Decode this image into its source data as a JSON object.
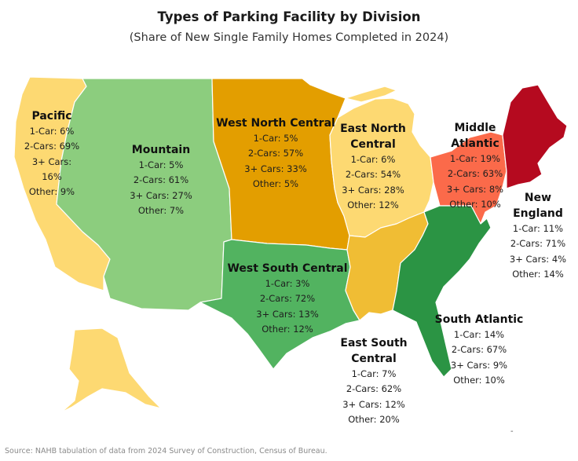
{
  "title": "Types of Parking Facility by Division",
  "subtitle": "(Share of New Single Family Homes Completed in 2024)",
  "source": "Source: NAHB tabulation of data from 2024 Survey of Construction, Census of Bureau.",
  "footer_mark": "-",
  "colors": {
    "pacific": "#fdd972",
    "mountain": "#8ccd7e",
    "west_north_central": "#e39e00",
    "east_north_central": "#fdd972",
    "middle_atlantic": "#fb6a4a",
    "new_england": "#b50a1f",
    "west_south_central": "#52b360",
    "east_south_central": "#f0bd34",
    "south_atlantic": "#2b9444"
  },
  "divisions": {
    "pacific": {
      "name": "Pacific",
      "car1": "1-Car: 6%",
      "car2": "2-Cars: 69%",
      "car3a": "3+ Cars:",
      "car3b": "16%",
      "other": "Other: 9%"
    },
    "mountain": {
      "name": "Mountain",
      "car1": "1-Car: 5%",
      "car2": "2-Cars: 61%",
      "car3": "3+ Cars: 27%",
      "other": "Other: 7%"
    },
    "west_north_central": {
      "name": "West North Central",
      "car1": "1-Car: 5%",
      "car2": "2-Cars: 57%",
      "car3": "3+ Cars: 33%",
      "other": "Other: 5%"
    },
    "east_north_central": {
      "name1": "East North",
      "name2": "Central",
      "car1": "1-Car: 6%",
      "car2": "2-Cars: 54%",
      "car3": "3+ Cars: 28%",
      "other": "Other: 12%"
    },
    "middle_atlantic": {
      "name1": "Middle",
      "name2": "Atlantic",
      "car1": "1-Car: 19%",
      "car2": "2-Cars: 63%",
      "car3": "3+ Cars: 8%",
      "other": "Other: 10%"
    },
    "new_england": {
      "name1": "New",
      "name2": "England",
      "car1": "1-Car: 11%",
      "car2": "2-Cars: 71%",
      "car3": "3+ Cars: 4%",
      "other": "Other: 14%"
    },
    "west_south_central": {
      "name": "West South Central",
      "car1": "1-Car: 3%",
      "car2": "2-Cars: 72%",
      "car3": "3+ Cars: 13%",
      "other": "Other: 12%"
    },
    "east_south_central": {
      "name1": "East South",
      "name2": "Central",
      "car1": "1-Car: 7%",
      "car2": "2-Cars: 62%",
      "car3": "3+ Cars: 12%",
      "other": "Other: 20%"
    },
    "south_atlantic": {
      "name": "South Atlantic",
      "car1": "1-Car: 14%",
      "car2": "2-Cars: 67%",
      "car3": "3+ Cars: 9%",
      "other": "Other: 10%"
    }
  }
}
